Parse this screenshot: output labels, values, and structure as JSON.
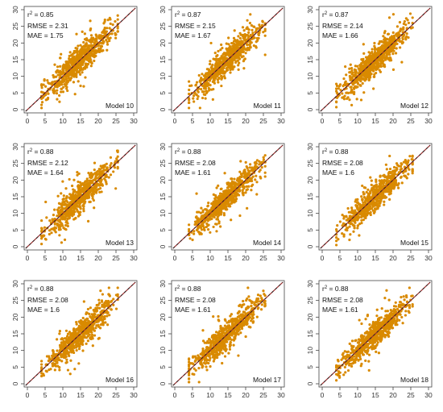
{
  "style": {
    "point_color": "#D98A00",
    "line_color": "#A03030",
    "axis_color": "#444444"
  },
  "chart_data": [
    {
      "type": "scatter",
      "title": "Model 10",
      "r2": "0.85",
      "rmse": "2.31",
      "mae": "1.75",
      "xlim": [
        0,
        30
      ],
      "ylim": [
        0,
        30
      ],
      "xticks": [
        0,
        5,
        10,
        15,
        20,
        25,
        30
      ],
      "yticks": [
        0,
        5,
        10,
        15,
        20,
        25,
        30
      ],
      "grid": false,
      "reference_line": "1:1",
      "n_points_approx": 700
    },
    {
      "type": "scatter",
      "title": "Model 11",
      "r2": "0.87",
      "rmse": "2.15",
      "mae": "1.67",
      "xlim": [
        0,
        30
      ],
      "ylim": [
        0,
        30
      ],
      "xticks": [
        0,
        5,
        10,
        15,
        20,
        25,
        30
      ],
      "yticks": [
        0,
        5,
        10,
        15,
        20,
        25,
        30
      ],
      "grid": false,
      "reference_line": "1:1",
      "n_points_approx": 700
    },
    {
      "type": "scatter",
      "title": "Model 12",
      "r2": "0.87",
      "rmse": "2.14",
      "mae": "1.66",
      "xlim": [
        0,
        30
      ],
      "ylim": [
        0,
        30
      ],
      "xticks": [
        0,
        5,
        10,
        15,
        20,
        25,
        30
      ],
      "yticks": [
        0,
        5,
        10,
        15,
        20,
        25,
        30
      ],
      "grid": false,
      "reference_line": "1:1",
      "n_points_approx": 700
    },
    {
      "type": "scatter",
      "title": "Model 13",
      "r2": "0.88",
      "rmse": "2.12",
      "mae": "1.64",
      "xlim": [
        0,
        30
      ],
      "ylim": [
        0,
        30
      ],
      "xticks": [
        0,
        5,
        10,
        15,
        20,
        25,
        30
      ],
      "yticks": [
        0,
        5,
        10,
        15,
        20,
        25,
        30
      ],
      "grid": false,
      "reference_line": "1:1",
      "n_points_approx": 700
    },
    {
      "type": "scatter",
      "title": "Model 14",
      "r2": "0.88",
      "rmse": "2.08",
      "mae": "1.61",
      "xlim": [
        0,
        30
      ],
      "ylim": [
        0,
        30
      ],
      "xticks": [
        0,
        5,
        10,
        15,
        20,
        25,
        30
      ],
      "yticks": [
        0,
        5,
        10,
        15,
        20,
        25,
        30
      ],
      "grid": false,
      "reference_line": "1:1",
      "n_points_approx": 700
    },
    {
      "type": "scatter",
      "title": "Model 15",
      "r2": "0.88",
      "rmse": "2.08",
      "mae": "1.6",
      "xlim": [
        0,
        30
      ],
      "ylim": [
        0,
        30
      ],
      "xticks": [
        0,
        5,
        10,
        15,
        20,
        25,
        30
      ],
      "yticks": [
        0,
        5,
        10,
        15,
        20,
        25,
        30
      ],
      "grid": false,
      "reference_line": "1:1",
      "n_points_approx": 700
    },
    {
      "type": "scatter",
      "title": "Model 16",
      "r2": "0.88",
      "rmse": "2.08",
      "mae": "1.6",
      "xlim": [
        0,
        30
      ],
      "ylim": [
        0,
        30
      ],
      "xticks": [
        0,
        5,
        10,
        15,
        20,
        25,
        30
      ],
      "yticks": [
        0,
        5,
        10,
        15,
        20,
        25,
        30
      ],
      "grid": false,
      "reference_line": "1:1",
      "n_points_approx": 700
    },
    {
      "type": "scatter",
      "title": "Model 17",
      "r2": "0.88",
      "rmse": "2.08",
      "mae": "1.61",
      "xlim": [
        0,
        30
      ],
      "ylim": [
        0,
        30
      ],
      "xticks": [
        0,
        5,
        10,
        15,
        20,
        25,
        30
      ],
      "yticks": [
        0,
        5,
        10,
        15,
        20,
        25,
        30
      ],
      "grid": false,
      "reference_line": "1:1",
      "n_points_approx": 700
    },
    {
      "type": "scatter",
      "title": "Model 18",
      "r2": "0.88",
      "rmse": "2.08",
      "mae": "1.61",
      "xlim": [
        0,
        30
      ],
      "ylim": [
        0,
        30
      ],
      "xticks": [
        0,
        5,
        10,
        15,
        20,
        25,
        30
      ],
      "yticks": [
        0,
        5,
        10,
        15,
        20,
        25,
        30
      ],
      "grid": false,
      "reference_line": "1:1",
      "n_points_approx": 700
    }
  ]
}
